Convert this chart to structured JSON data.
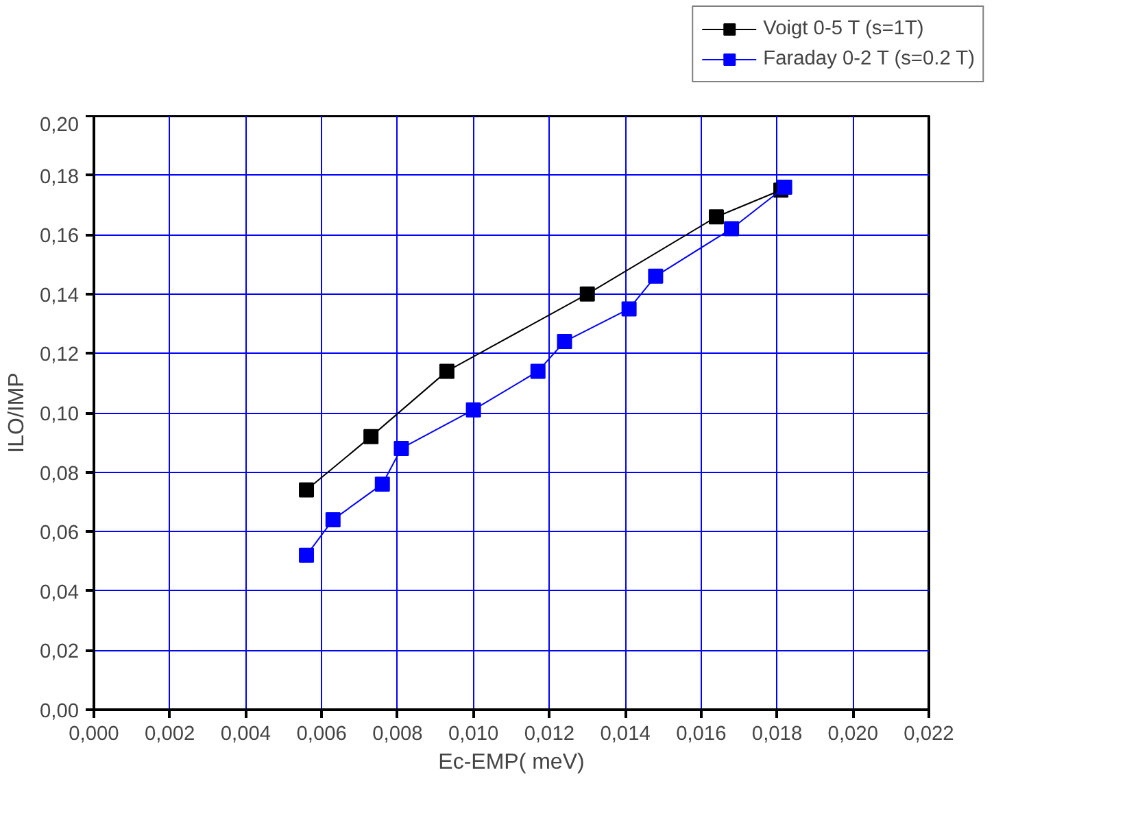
{
  "chart_data": {
    "type": "line",
    "xlabel": "Ec-EMP( meV)",
    "ylabel": "ILO/IMP",
    "xlim": [
      0,
      0.022
    ],
    "ylim": [
      0,
      0.2
    ],
    "xticks": [
      {
        "value": 0,
        "label": "0,000"
      },
      {
        "value": 0.002,
        "label": "0,002"
      },
      {
        "value": 0.004,
        "label": "0,004"
      },
      {
        "value": 0.006,
        "label": "0,006"
      },
      {
        "value": 0.008,
        "label": "0,008"
      },
      {
        "value": 0.01,
        "label": "0,010"
      },
      {
        "value": 0.012,
        "label": "0,012"
      },
      {
        "value": 0.014,
        "label": "0,014"
      },
      {
        "value": 0.016,
        "label": "0,016"
      },
      {
        "value": 0.018,
        "label": "0,018"
      },
      {
        "value": 0.02,
        "label": "0,020"
      },
      {
        "value": 0.022,
        "label": "0,022"
      }
    ],
    "yticks": [
      {
        "value": 0,
        "label": "0,00"
      },
      {
        "value": 0.02,
        "label": "0,02"
      },
      {
        "value": 0.04,
        "label": "0,04"
      },
      {
        "value": 0.06,
        "label": "0,06"
      },
      {
        "value": 0.08,
        "label": "0,08"
      },
      {
        "value": 0.1,
        "label": "0,10"
      },
      {
        "value": 0.12,
        "label": "0,12"
      },
      {
        "value": 0.14,
        "label": "0,14"
      },
      {
        "value": 0.16,
        "label": "0,16"
      },
      {
        "value": 0.18,
        "label": "0,18"
      },
      {
        "value": 0.2,
        "label": "0,20"
      }
    ],
    "grid": true,
    "legend": "top right",
    "marker": "square",
    "line_style": "solid",
    "series": [
      {
        "name": "Voigt 0-5 T (s=1T)",
        "color": "#000000",
        "x": [
          0.0056,
          0.0073,
          0.0093,
          0.013,
          0.0164,
          0.0181
        ],
        "values": [
          0.074,
          0.092,
          0.114,
          0.14,
          0.166,
          0.175
        ]
      },
      {
        "name": "Faraday 0-2 T (s=0.2 T)",
        "color": "#0000ff",
        "x": [
          0.0056,
          0.0063,
          0.0076,
          0.0081,
          0.01,
          0.0117,
          0.0124,
          0.0141,
          0.0148,
          0.0168,
          0.0182
        ],
        "values": [
          0.052,
          0.064,
          0.076,
          0.088,
          0.101,
          0.114,
          0.124,
          0.135,
          0.146,
          0.162,
          0.176
        ]
      }
    ]
  }
}
